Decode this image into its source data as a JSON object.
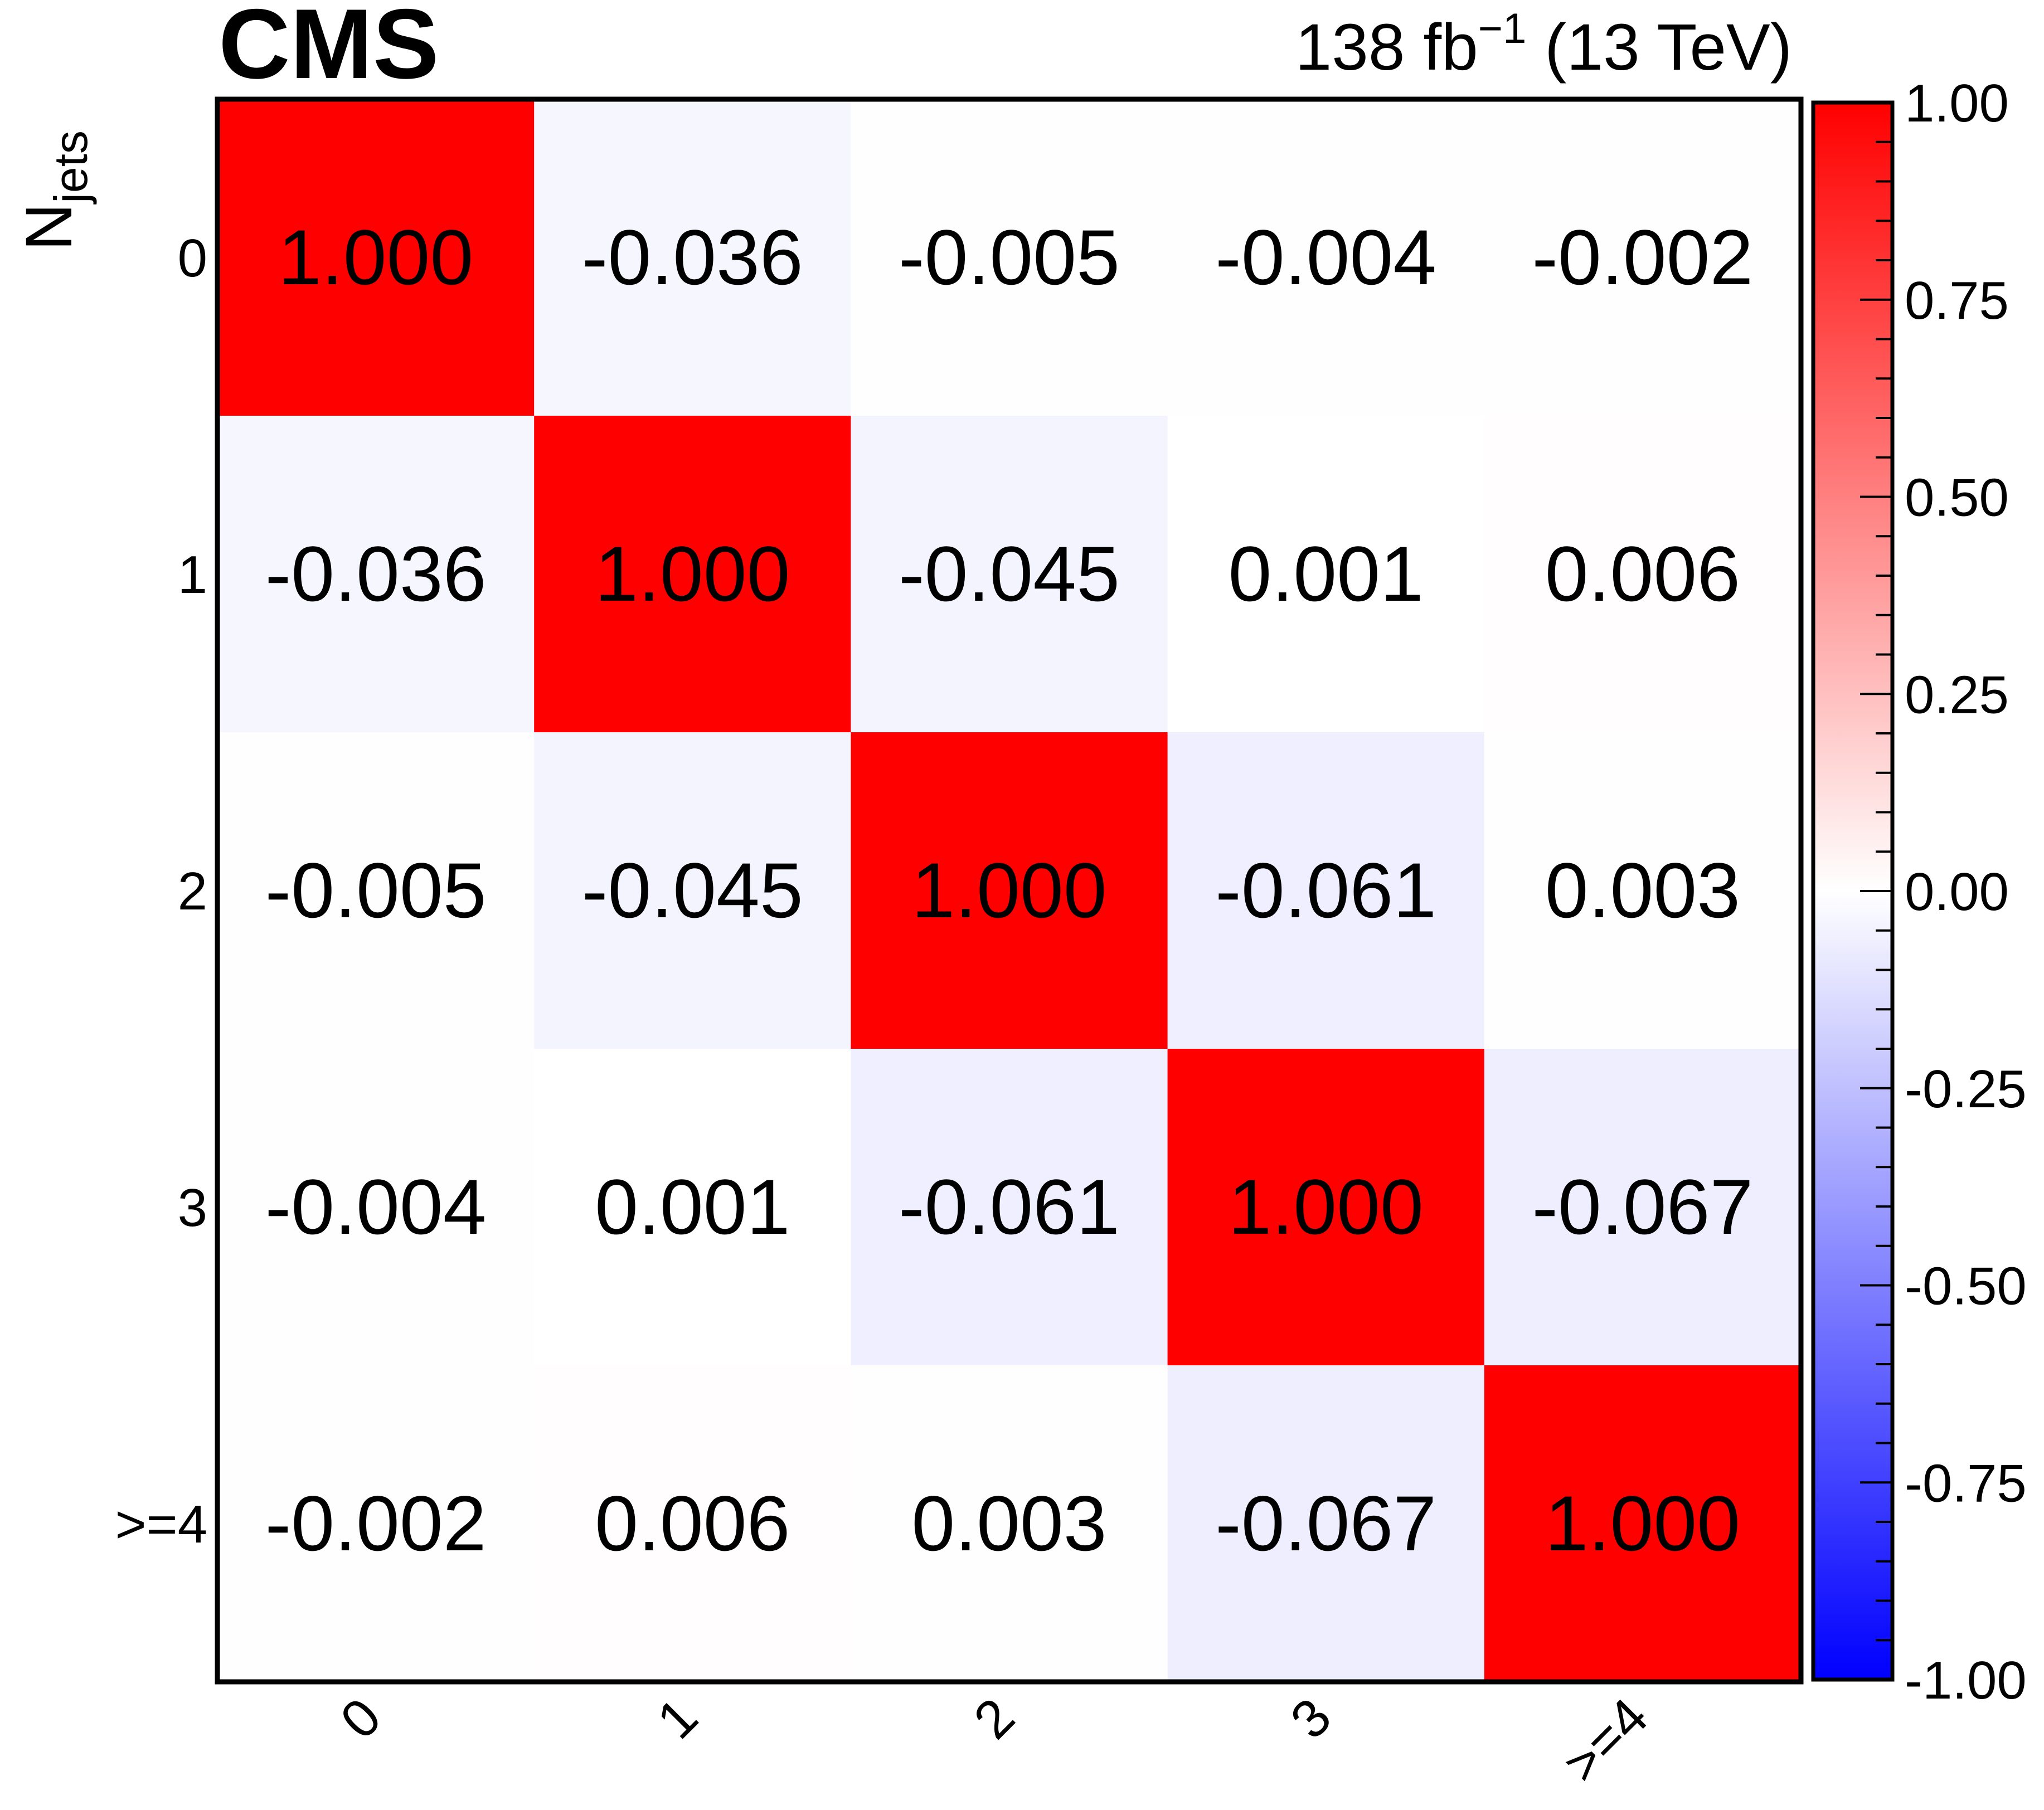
{
  "header": {
    "experiment": "CMS",
    "luminosity": "138 fb",
    "luminosity_exponent": "−1",
    "energy": " (13 TeV)"
  },
  "chart_data": {
    "type": "heatmap",
    "title": "",
    "xlabel": "",
    "ylabel_main": "N",
    "ylabel_sub": "jets",
    "categories": [
      "0",
      "1",
      "2",
      "3",
      ">=4"
    ],
    "matrix": [
      [
        1.0,
        -0.036,
        -0.005,
        -0.004,
        -0.002
      ],
      [
        -0.036,
        1.0,
        -0.045,
        0.001,
        0.006
      ],
      [
        -0.005,
        -0.045,
        1.0,
        -0.061,
        0.003
      ],
      [
        -0.004,
        0.001,
        -0.061,
        1.0,
        -0.067
      ],
      [
        -0.002,
        0.006,
        0.003,
        -0.067,
        1.0
      ]
    ],
    "value_format": "3 decimals",
    "colorbar": {
      "range": [
        -1.0,
        1.0
      ],
      "ticks": [
        "1.00",
        "0.75",
        "0.50",
        "0.25",
        "0.00",
        "-0.25",
        "-0.50",
        "-0.75",
        "-1.00"
      ],
      "colors": {
        "low": "#0000ff",
        "mid": "#ffffff",
        "high": "#ff0000"
      }
    },
    "grid": false,
    "legend": "colorbar-right"
  }
}
